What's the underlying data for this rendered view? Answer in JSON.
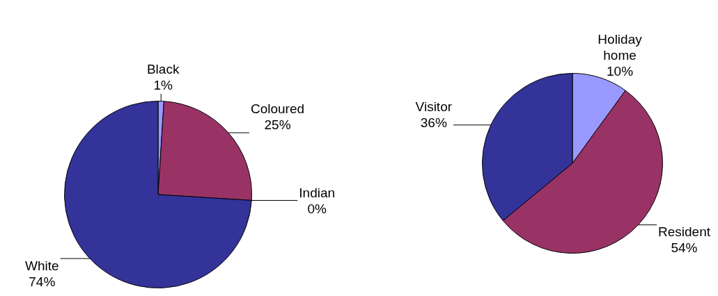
{
  "chart_data": [
    {
      "type": "pie",
      "categories": [
        "Black",
        "Coloured",
        "Indian",
        "White"
      ],
      "values": [
        1,
        25,
        0,
        74
      ],
      "value_labels": [
        "1%",
        "25%",
        "0%",
        "74%"
      ],
      "colors": [
        "#9999ff",
        "#993366",
        "#ffffcc",
        "#333399"
      ]
    },
    {
      "type": "pie",
      "categories": [
        "Holiday home",
        "Resident",
        "Visitor"
      ],
      "values": [
        10,
        54,
        36
      ],
      "value_labels": [
        "10%",
        "54%",
        "36%"
      ],
      "colors": [
        "#9999ff",
        "#993366",
        "#333399"
      ]
    }
  ]
}
